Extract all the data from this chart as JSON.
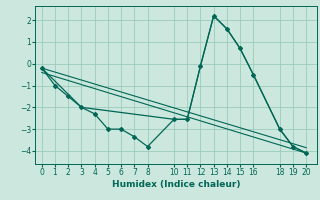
{
  "xlabel": "Humidex (Indice chaleur)",
  "bg_color": "#cce8de",
  "grid_color": "#99ccbb",
  "line_color": "#006655",
  "series": [
    {
      "x": [
        0,
        1,
        2,
        3,
        4,
        5,
        6,
        7,
        8,
        10,
        11,
        12,
        13,
        14,
        15,
        16,
        18,
        19,
        20
      ],
      "y": [
        -0.2,
        -1.0,
        -1.5,
        -2.0,
        -2.3,
        -3.0,
        -3.0,
        -3.35,
        -3.8,
        -2.55,
        -2.55,
        -0.1,
        2.2,
        1.6,
        0.7,
        -0.5,
        -3.0,
        -3.8,
        -4.1
      ],
      "marker": true,
      "lw": 0.9
    },
    {
      "x": [
        0,
        3,
        10,
        11,
        12,
        13,
        14,
        15,
        16,
        18,
        19,
        20
      ],
      "y": [
        -0.2,
        -2.0,
        -2.55,
        -2.55,
        -0.1,
        2.2,
        1.6,
        0.7,
        -0.5,
        -3.0,
        -3.8,
        -4.1
      ],
      "marker": false,
      "lw": 0.9
    },
    {
      "x": [
        0,
        20
      ],
      "y": [
        -0.2,
        -3.85
      ],
      "marker": false,
      "lw": 0.8
    },
    {
      "x": [
        0,
        20
      ],
      "y": [
        -0.4,
        -4.1
      ],
      "marker": false,
      "lw": 0.8
    }
  ],
  "xlim": [
    -0.5,
    20.8
  ],
  "ylim": [
    -4.6,
    2.65
  ],
  "yticks": [
    -4,
    -3,
    -2,
    -1,
    0,
    1,
    2
  ],
  "xticks": [
    0,
    1,
    2,
    3,
    4,
    5,
    6,
    7,
    8,
    10,
    11,
    12,
    13,
    14,
    15,
    16,
    18,
    19,
    20
  ],
  "tick_fontsize": 5.5,
  "xlabel_fontsize": 6.5
}
